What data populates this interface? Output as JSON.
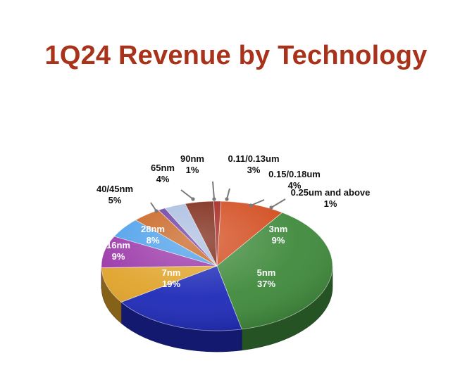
{
  "chart_data": {
    "type": "pie",
    "title": "1Q24 Revenue by Technology",
    "categories": [
      "3nm",
      "5nm",
      "7nm",
      "16nm",
      "28nm",
      "40/45nm",
      "65nm",
      "90nm",
      "0.11/0.13um",
      "0.15/0.18um",
      "0.25um and above"
    ],
    "values": [
      9,
      37,
      19,
      9,
      8,
      5,
      4,
      1,
      3,
      4,
      1
    ],
    "value_labels": [
      "9%",
      "37%",
      "19%",
      "9%",
      "8%",
      "5%",
      "4%",
      "1%",
      "3%",
      "4%",
      "1%"
    ],
    "colors": [
      "#d24a1c",
      "#3f8a3c",
      "#1e2ab8",
      "#e0a32a",
      "#9a35a8",
      "#4a9eea",
      "#c8621e",
      "#6a3aa0",
      "#a9bde0",
      "#7a2412",
      "#a2201a"
    ],
    "style": "3d-tilted"
  }
}
